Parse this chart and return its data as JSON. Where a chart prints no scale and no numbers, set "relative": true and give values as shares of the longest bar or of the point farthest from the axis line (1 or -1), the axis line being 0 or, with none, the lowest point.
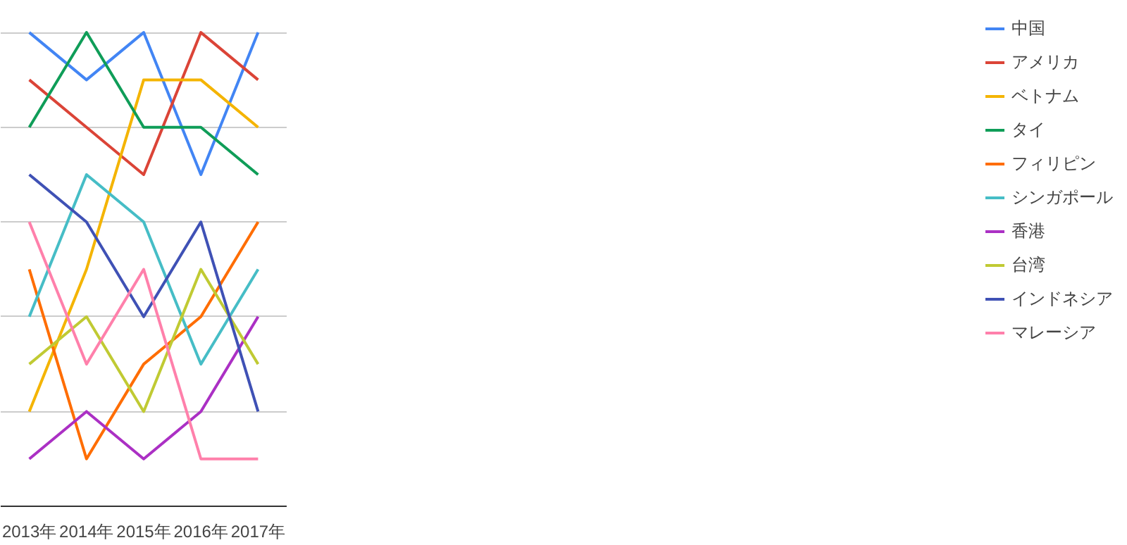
{
  "chart_data": {
    "type": "line",
    "relative": true,
    "categories": [
      "2013年",
      "2014年",
      "2015年",
      "2016年",
      "2017年"
    ],
    "grid": "y",
    "legend": "right",
    "series": [
      {
        "name": "中国",
        "color": "#4285f4",
        "values": [
          1.0,
          0.9,
          1.0,
          0.7,
          1.0
        ]
      },
      {
        "name": "アメリカ",
        "color": "#db4437",
        "values": [
          0.9,
          0.8,
          0.7,
          1.0,
          0.9
        ]
      },
      {
        "name": "ベトナム",
        "color": "#f4b400",
        "values": [
          0.2,
          0.5,
          0.9,
          0.9,
          0.8
        ]
      },
      {
        "name": "タイ",
        "color": "#0f9d58",
        "values": [
          0.8,
          1.0,
          0.8,
          0.8,
          0.7
        ]
      },
      {
        "name": "フィリピン",
        "color": "#ff6d00",
        "values": [
          0.5,
          0.1,
          0.3,
          0.4,
          0.6
        ]
      },
      {
        "name": "シンガポール",
        "color": "#46bdc6",
        "values": [
          0.4,
          0.7,
          0.6,
          0.3,
          0.5
        ]
      },
      {
        "name": "香港",
        "color": "#ab30c4",
        "values": [
          0.1,
          0.2,
          0.1,
          0.2,
          0.4
        ]
      },
      {
        "name": "台湾",
        "color": "#c0ca33",
        "values": [
          0.3,
          0.4,
          0.2,
          0.5,
          0.3
        ]
      },
      {
        "name": "インドネシア",
        "color": "#3f51b5",
        "values": [
          0.7,
          0.6,
          0.4,
          0.6,
          0.2
        ]
      },
      {
        "name": "マレーシア",
        "color": "#ff80ab",
        "values": [
          0.6,
          0.3,
          0.5,
          0.1,
          0.1
        ]
      }
    ]
  }
}
